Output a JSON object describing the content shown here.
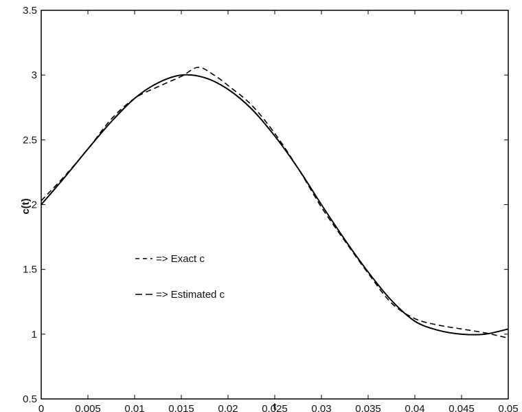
{
  "chart_data": {
    "type": "line",
    "title": "",
    "xlabel": "t",
    "ylabel": "c(t)",
    "xlim": [
      0,
      0.05
    ],
    "ylim": [
      0.5,
      3.5
    ],
    "grid": false,
    "x_ticks": [
      0,
      0.005,
      0.01,
      0.015,
      0.02,
      0.025,
      0.03,
      0.035,
      0.04,
      0.045,
      0.05
    ],
    "x_tick_labels": [
      "0",
      "0.005",
      "0.01",
      "0.015",
      "0.02",
      "0.025",
      "0.03",
      "0.035",
      "0.04",
      "0.045",
      "0.05"
    ],
    "y_ticks": [
      0.5,
      1,
      1.5,
      2,
      2.5,
      3,
      3.5
    ],
    "y_tick_labels": [
      "0.5",
      "1",
      "1.5",
      "2",
      "2.5",
      "3",
      "3.5"
    ],
    "legend": [
      {
        "label": "=> Exact c",
        "style": "dashed-short"
      },
      {
        "label": "=> Estimated c",
        "style": "dashed-long"
      }
    ],
    "legend_placement": "middle-left",
    "series": [
      {
        "style": "solid",
        "color": "#000000",
        "x": [
          0,
          0.0025,
          0.005,
          0.0075,
          0.01,
          0.0125,
          0.015,
          0.0175,
          0.02,
          0.0225,
          0.025,
          0.0275,
          0.03,
          0.0325,
          0.035,
          0.0375,
          0.04,
          0.0425,
          0.045,
          0.0475,
          0.05
        ],
        "values": [
          2.0,
          2.21,
          2.43,
          2.64,
          2.82,
          2.94,
          3.0,
          2.98,
          2.89,
          2.74,
          2.53,
          2.28,
          2.0,
          1.73,
          1.48,
          1.26,
          1.1,
          1.03,
          1.0,
          1.0,
          1.04
        ]
      },
      {
        "style": "dashed",
        "color": "#000000",
        "x": [
          0,
          0.0025,
          0.005,
          0.0075,
          0.01,
          0.0125,
          0.015,
          0.0168,
          0.0185,
          0.02,
          0.0225,
          0.025,
          0.0275,
          0.03,
          0.0325,
          0.035,
          0.0375,
          0.04,
          0.0425,
          0.045,
          0.0475,
          0.05
        ],
        "values": [
          2.03,
          2.22,
          2.43,
          2.66,
          2.82,
          2.91,
          2.99,
          3.06,
          3.0,
          2.92,
          2.77,
          2.55,
          2.28,
          1.98,
          1.72,
          1.47,
          1.24,
          1.12,
          1.07,
          1.04,
          1.01,
          0.97
        ]
      }
    ]
  }
}
